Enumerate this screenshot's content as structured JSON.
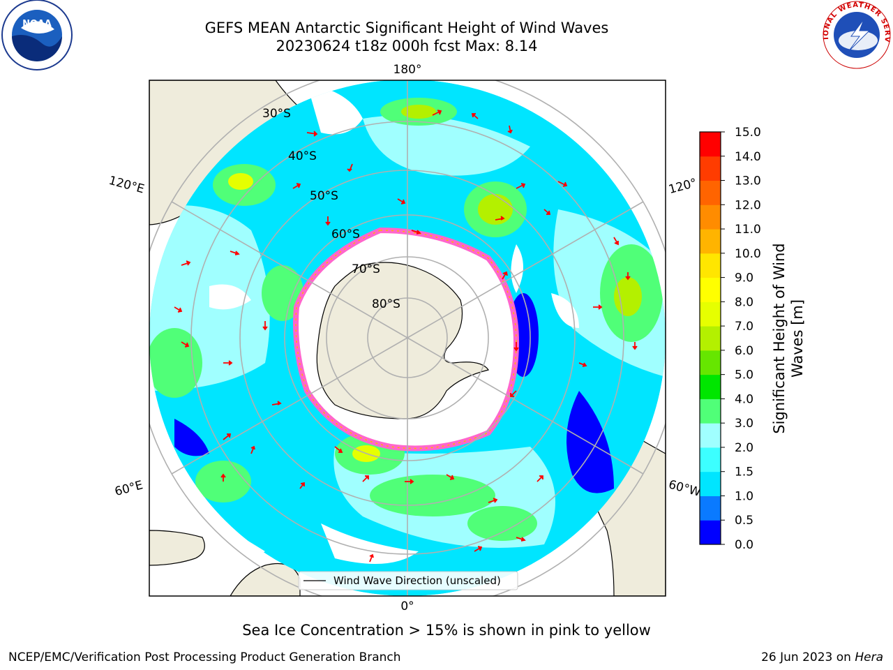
{
  "title_line1": "GEFS MEAN Antarctic Significant Height of Wind Waves",
  "title_line2": "20230624 t18z 000h fcst   Max: 8.14",
  "logos": {
    "left": "NOAA",
    "right": "NATIONAL WEATHER SERVICE"
  },
  "map": {
    "projection": "south-polar-stereographic",
    "lon_labels": [
      "180°",
      "0°",
      "120°E",
      "120°",
      "60°E",
      "60°W"
    ],
    "lat_labels": [
      "30°S",
      "40°S",
      "50°S",
      "60°S",
      "70°S",
      "80°S"
    ],
    "legend": "Wind Wave Direction (unscaled)",
    "colors": {
      "land": "#efecdc",
      "ice": "#ff66cc",
      "arrow": "#ff0000",
      "grid": "#b0b0b0"
    }
  },
  "colorbar": {
    "label_line1": "Significant Height of Wind",
    "label_line2": "Waves [m]",
    "ticks": [
      "0.0",
      "0.5",
      "1.0",
      "1.5",
      "2.0",
      "3.0",
      "4.0",
      "5.0",
      "6.0",
      "7.0",
      "8.0",
      "9.0",
      "10.0",
      "11.0",
      "12.0",
      "13.0",
      "14.0",
      "15.0"
    ],
    "colors": [
      "#0000ff",
      "#0a7aff",
      "#00e5ff",
      "#3cffff",
      "#a0ffff",
      "#50ff78",
      "#00e600",
      "#66e600",
      "#b4f000",
      "#e6ff00",
      "#ffff00",
      "#ffe600",
      "#ffb400",
      "#ff8c00",
      "#ff6400",
      "#ff3c00",
      "#ff0000"
    ]
  },
  "note": "Sea Ice Concentration > 15% is shown in pink to yellow",
  "footer_left": "NCEP/EMC/Verification Post Processing Product Generation Branch",
  "footer_right_prefix": "26 Jun 2023 on",
  "footer_right_host": "Hera"
}
